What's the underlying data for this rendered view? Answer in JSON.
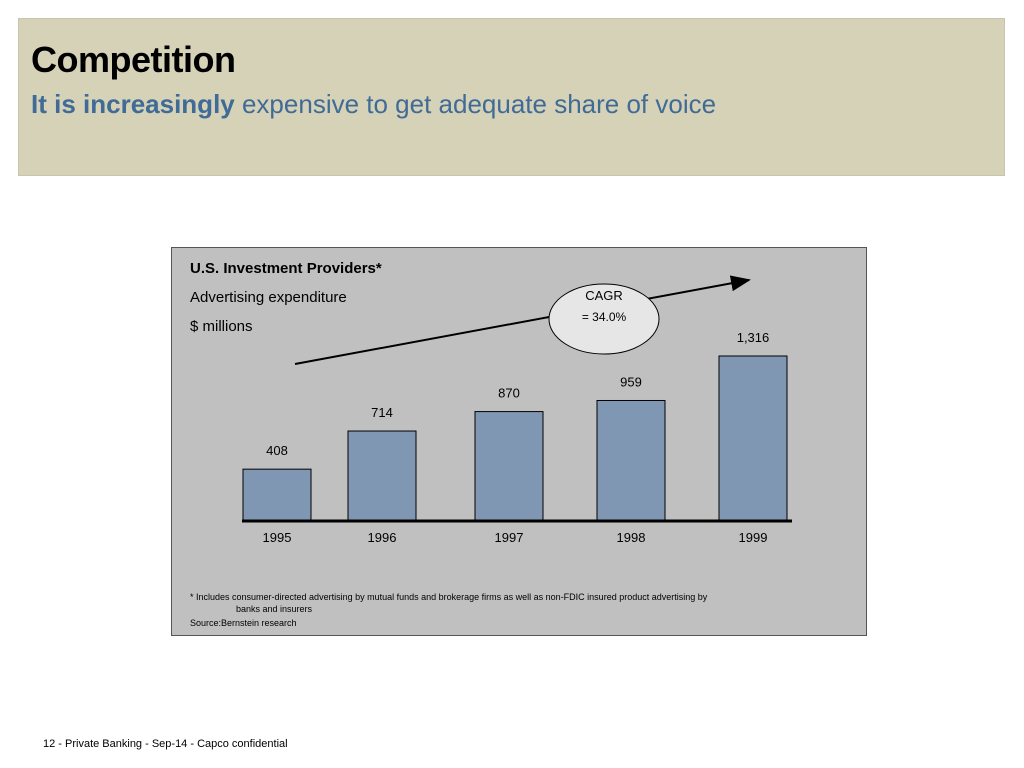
{
  "header": {
    "title": "Competition",
    "subtitle_bold": "It is increasingly",
    "subtitle_rest": " expensive to get adequate share of voice"
  },
  "chart_box": {
    "cagr_label": "CAGR",
    "cagr_value": "= 34.0%",
    "footnote_line1": "* Includes consumer-directed advertising by mutual funds and brokerage firms as well as non-FDIC insured product advertising by",
    "footnote_line2": "banks and insurers",
    "source": "Source:Bernstein research"
  },
  "chart_data": {
    "type": "bar",
    "title": "U.S. Investment Providers*",
    "subtitle_line1": "Advertising expenditure",
    "subtitle_line2": "$ millions",
    "categories": [
      "1995",
      "1996",
      "1997",
      "1998",
      "1999"
    ],
    "values": [
      408,
      714,
      870,
      959,
      1316
    ],
    "value_labels": [
      "408",
      "714",
      "870",
      "959",
      "1,316"
    ],
    "bar_color": "#8097b3",
    "ylim": [
      0,
      1316
    ],
    "grid": false,
    "legend": "none"
  },
  "footer": {
    "text": "12 - Private Banking  - Sep-14 - Capco confidential"
  }
}
